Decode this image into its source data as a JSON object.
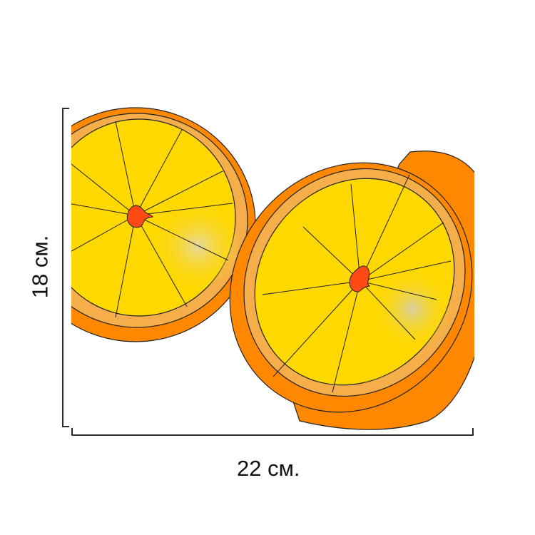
{
  "dimensions": {
    "width_label": "22 см.",
    "height_label": "18 см."
  },
  "colors": {
    "peel_outer": "#FF8800",
    "pith": "#F5AE4A",
    "pulp": "#FFD800",
    "core": "#FF4A14",
    "segment_line": "#111111",
    "dimension_line": "#111111"
  }
}
